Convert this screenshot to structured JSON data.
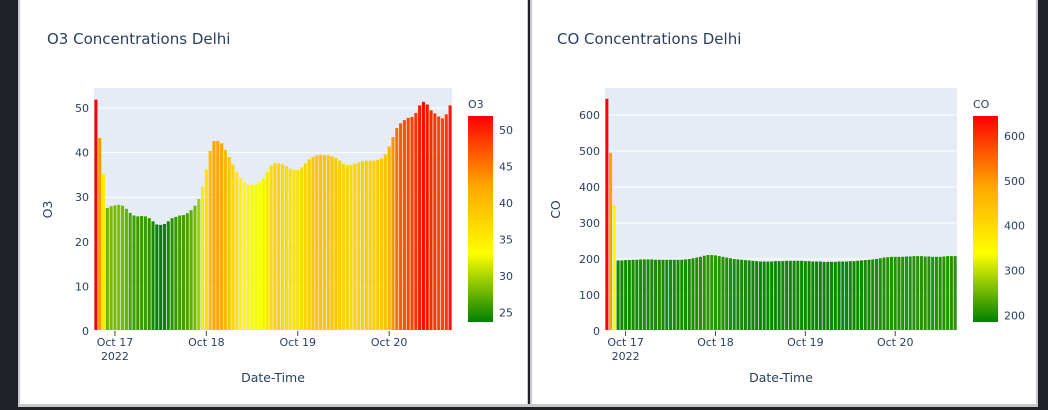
{
  "chart_data": [
    {
      "type": "bar",
      "title": "O3 Concentrations Delhi",
      "xlabel": "Date-Time",
      "ylabel": "O3",
      "ylim": [
        0,
        54.5
      ],
      "yticks": [
        0,
        10,
        20,
        30,
        40,
        50
      ],
      "xticks": [
        {
          "at": 5,
          "lines": [
            "Oct 17",
            "2022"
          ]
        },
        {
          "at": 29,
          "lines": [
            "Oct 18"
          ]
        },
        {
          "at": 53,
          "lines": [
            "Oct 19"
          ]
        },
        {
          "at": 77,
          "lines": [
            "Oct 20"
          ]
        }
      ],
      "x_start": "2022-10-16 14:00",
      "x_step_hours": 1,
      "grid": true,
      "colorbar": {
        "title": "O3",
        "min": 23.7,
        "max": 51.9,
        "ticks": [
          25,
          30,
          35,
          40,
          45,
          50
        ],
        "colors": [
          "#008000",
          "#ffff00",
          "#ffa500",
          "#ff0000"
        ]
      },
      "values": [
        51.9,
        43.3,
        35.2,
        27.6,
        28.0,
        28.2,
        28.3,
        28.1,
        27.4,
        26.5,
        25.9,
        25.7,
        25.8,
        25.7,
        25.3,
        24.6,
        23.9,
        23.8,
        24.0,
        24.6,
        25.3,
        25.6,
        25.9,
        26.0,
        26.4,
        27.1,
        28.1,
        29.6,
        32.3,
        36.2,
        40.4,
        42.6,
        42.6,
        42.1,
        40.6,
        39.0,
        37.3,
        35.7,
        34.4,
        33.5,
        32.9,
        32.8,
        32.9,
        33.3,
        34.2,
        35.7,
        37.1,
        37.6,
        37.6,
        37.4,
        37.0,
        36.4,
        36.1,
        36.1,
        36.7,
        37.6,
        38.5,
        39.1,
        39.4,
        39.5,
        39.4,
        39.4,
        39.2,
        38.8,
        38.2,
        37.5,
        37.2,
        37.2,
        37.5,
        37.8,
        38.1,
        38.2,
        38.2,
        38.2,
        38.4,
        38.7,
        39.6,
        41.4,
        43.5,
        45.5,
        46.6,
        47.3,
        47.8,
        48.0,
        48.9,
        50.6,
        51.4,
        50.8,
        49.5,
        48.8,
        48.1,
        47.7,
        48.6,
        50.6
      ]
    },
    {
      "type": "bar",
      "title": "CO Concentrations Delhi",
      "xlabel": "Date-Time",
      "ylabel": "CO",
      "ylim": [
        0,
        675
      ],
      "yticks": [
        0,
        100,
        200,
        300,
        400,
        500,
        600
      ],
      "xticks": [
        {
          "at": 5,
          "lines": [
            "Oct 17",
            "2022"
          ]
        },
        {
          "at": 29,
          "lines": [
            "Oct 18"
          ]
        },
        {
          "at": 53,
          "lines": [
            "Oct 19"
          ]
        },
        {
          "at": 77,
          "lines": [
            "Oct 20"
          ]
        }
      ],
      "x_start": "2022-10-16 14:00",
      "x_step_hours": 1,
      "grid": true,
      "colorbar": {
        "title": "CO",
        "min": 185,
        "max": 645,
        "ticks": [
          200,
          300,
          400,
          500,
          600
        ],
        "colors": [
          "#008000",
          "#ffff00",
          "#ffa500",
          "#ff0000"
        ]
      },
      "values": [
        645,
        495,
        350,
        196,
        196,
        197,
        197,
        198,
        198,
        199,
        199,
        199,
        199,
        198,
        198,
        198,
        198,
        198,
        198,
        198,
        198,
        199,
        200,
        202,
        204,
        206,
        209,
        211,
        211,
        210,
        208,
        206,
        204,
        202,
        200,
        199,
        198,
        197,
        196,
        195,
        194,
        193,
        193,
        193,
        193,
        194,
        194,
        194,
        195,
        195,
        195,
        195,
        195,
        194,
        194,
        193,
        193,
        193,
        192,
        192,
        192,
        192,
        193,
        193,
        193,
        194,
        194,
        195,
        196,
        197,
        198,
        199,
        200,
        202,
        204,
        205,
        206,
        206,
        206,
        206,
        207,
        207,
        208,
        208,
        208,
        207,
        207,
        206,
        206,
        206,
        207,
        208,
        208,
        208
      ]
    }
  ]
}
